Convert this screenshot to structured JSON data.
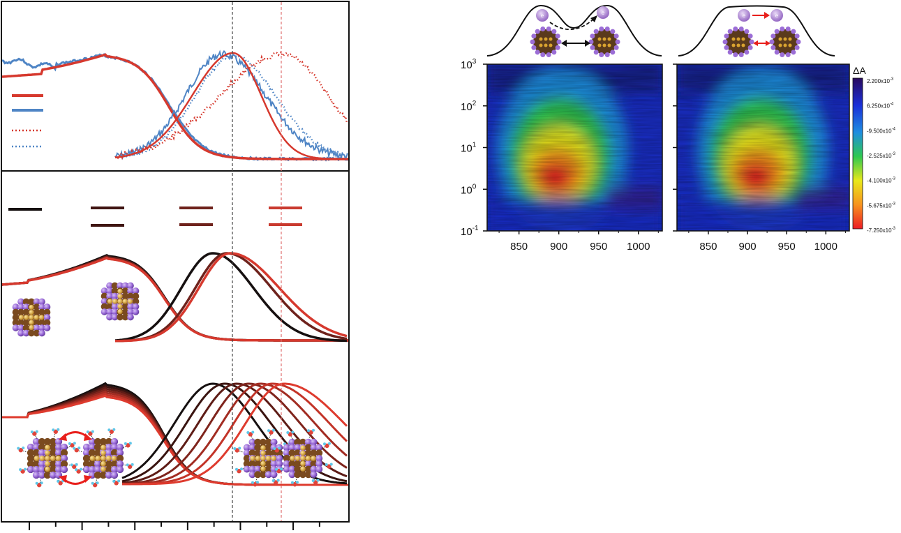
{
  "figure": {
    "left_panel": {
      "x_tick_count": 12,
      "colors": {
        "red": "#d6392e",
        "blue": "#4f85c5",
        "black": "#161010",
        "darkbrown": "#3f1512",
        "brown": "#6e221c",
        "lightred": "#c93a2f"
      },
      "vertical_markers": [
        {
          "color": "#444444",
          "style": "dashed"
        },
        {
          "color": "#e07070",
          "style": "dashed"
        }
      ]
    },
    "heatmaps": {
      "x_ticks": [
        "850",
        "900",
        "950",
        "1000"
      ],
      "y_ticks": [
        {
          "base": "10",
          "exp": "-1"
        },
        {
          "base": "10",
          "exp": "0"
        },
        {
          "base": "10",
          "exp": "1"
        },
        {
          "base": "10",
          "exp": "2"
        },
        {
          "base": "10",
          "exp": "3"
        }
      ],
      "electron_label": "e",
      "colorbar": {
        "symbol": "ΔA",
        "labels": [
          "2.200x10-3",
          "6.250x10-4",
          "-9.500x10-4",
          "-2.525x10-3",
          "-4.100x10-3",
          "-5.675x10-3",
          "-7.250x10-3"
        ],
        "colors": [
          "#2a0a5e",
          "#1a2fd8",
          "#1e8de0",
          "#2ec850",
          "#e8e81a",
          "#f7931e",
          "#ec1c24"
        ]
      }
    }
  },
  "chart_data": [
    {
      "type": "line",
      "panel": "absorption-emission-top",
      "series": [
        {
          "color": "#d6392e",
          "style": "solid",
          "kind": "absorption"
        },
        {
          "color": "#4f85c5",
          "style": "solid",
          "kind": "absorption"
        },
        {
          "color": "#d6392e",
          "style": "solid",
          "kind": "emission"
        },
        {
          "color": "#4f85c5",
          "style": "solid",
          "kind": "emission"
        },
        {
          "color": "#d6392e",
          "style": "dotted",
          "kind": "emission"
        },
        {
          "color": "#4f85c5",
          "style": "dotted",
          "kind": "emission"
        }
      ]
    },
    {
      "type": "line",
      "panel": "absorption-emission-middle",
      "series": [
        {
          "color": "#161010"
        },
        {
          "color": "#6e221c"
        },
        {
          "color": "#d6392e"
        }
      ]
    },
    {
      "type": "line",
      "panel": "absorption-emission-bottom",
      "series_count": 7
    },
    {
      "type": "heatmap",
      "x_range": [
        810,
        1030
      ],
      "y_scale": "log",
      "y_range": [
        0.1,
        1000
      ],
      "maps": [
        {
          "peak_x": 900,
          "peak_y": 2
        },
        {
          "peak_x": 915,
          "peak_y": 2
        }
      ]
    }
  ]
}
